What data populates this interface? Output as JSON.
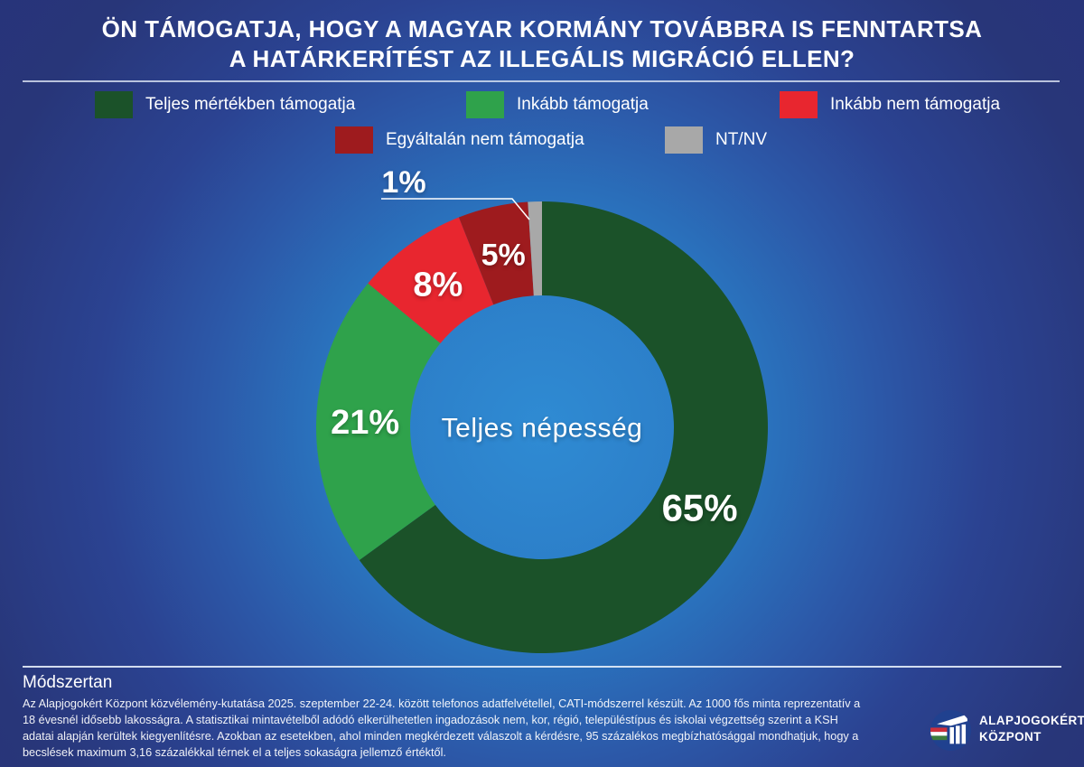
{
  "title": {
    "line1": "ÖN TÁMOGATJA, HOGY A MAGYAR KORMÁNY TOVÁBBRA IS FENNTARTSA",
    "line2": "A HATÁRKERÍTÉST AZ ILLEGÁLIS MIGRÁCIÓ ELLEN?"
  },
  "legend": {
    "items": [
      {
        "label": "Teljes mértékben támogatja",
        "color": "#1B5229"
      },
      {
        "label": "Inkább támogatja",
        "color": "#2FA24B"
      },
      {
        "label": "Inkább nem támogatja",
        "color": "#E8262F"
      },
      {
        "label": "Egyáltalán nem támogatja",
        "color": "#9E1B1E"
      },
      {
        "label": "NT/NV",
        "color": "#A8A8A8"
      }
    ]
  },
  "chart_data": {
    "type": "pie",
    "variant": "donut",
    "center_label": "Teljes népesség",
    "categories": [
      "Teljes mértékben támogatja",
      "Inkább támogatja",
      "Inkább nem támogatja",
      "Egyáltalán nem támogatja",
      "NT/NV"
    ],
    "values": [
      65,
      21,
      8,
      5,
      1
    ],
    "labels": [
      "65%",
      "21%",
      "8%",
      "5%",
      "1%"
    ],
    "colors": [
      "#1B5229",
      "#2FA24B",
      "#E8262F",
      "#9E1B1E",
      "#A8A8A8"
    ],
    "unit": "%",
    "start_angle_deg": 0,
    "direction": "clockwise",
    "legend_position": "top"
  },
  "footer": {
    "heading": "Módszertan",
    "body": "Az Alapjogokért Központ közvélemény-kutatása 2025. szeptember 22-24. között telefonos adatfelvétellel, CATI-módszerrel készült. Az 1000 fős minta reprezentatív a 18 évesnél idősebb lakosságra. A statisztikai mintavételből adódó elkerülhetetlen ingadozások nem, kor, régió, településtípus és iskolai végzettség szerint a KSH adatai alapján kerültek kiegyenlítésre. Azokban az esetekben, ahol minden megkérdezett válaszolt a kérdésre, 95 százalékos megbízhatósággal mondhatjuk, hogy a becslések maximum 3,16 százalékkal térnek el a teljes sokaságra jellemző értéktől."
  },
  "logo": {
    "line1": "ALAPJOGOKÉRT",
    "line2": "KÖZPONT"
  },
  "colors": {
    "background_center": "#2F8BD3",
    "background_edge": "#27337A",
    "text": "#FFFFFF"
  }
}
